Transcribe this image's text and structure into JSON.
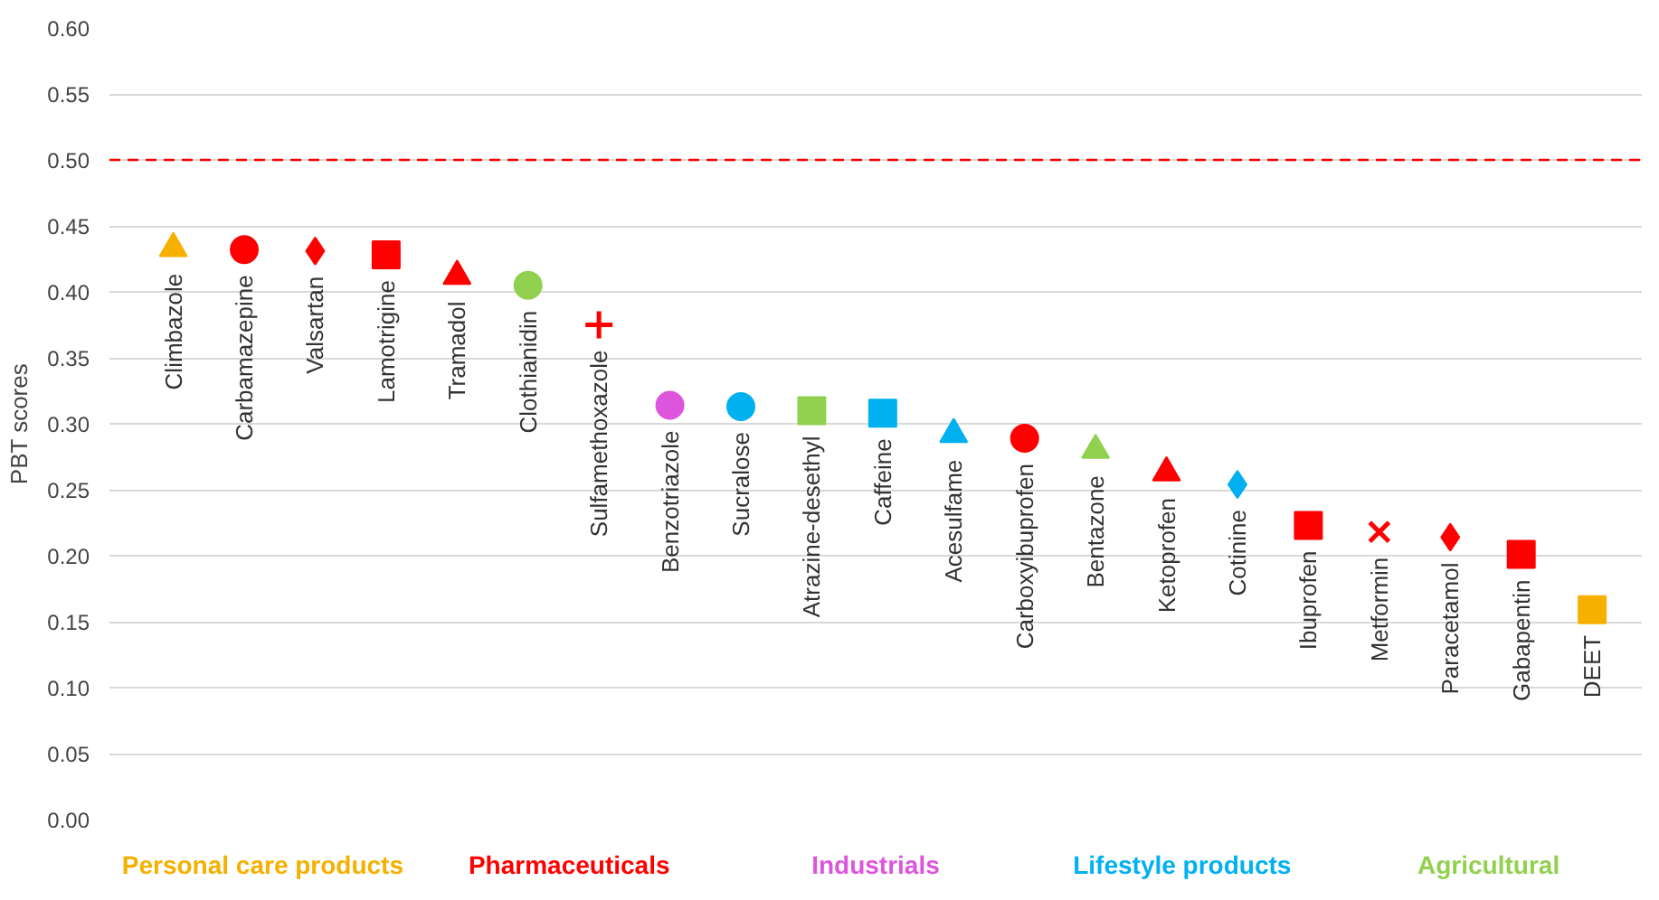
{
  "chart_data": {
    "type": "scatter",
    "ylabel": "PBT scores",
    "categories": [
      "Climbazole",
      "Carbamazepine",
      "Valsartan",
      "Lamotrigine",
      "Tramadol",
      "Clothianidin",
      "Sulfamethoxazole",
      "Benzotriazole",
      "Sucralose",
      "Atrazine-desethyl",
      "Caffeine",
      "Acesulfame",
      "Carboxyibuprofen",
      "Bentazone",
      "Ketoprofen",
      "Cotinine",
      "Ibuprofen",
      "Metformin",
      "Paracetamol",
      "Gabapentin",
      "DEET"
    ],
    "series": [
      {
        "name": "Personal care products",
        "color": "#f5b000",
        "marker": "triangle",
        "x": [
          "Climbazole"
        ],
        "values": [
          0.433
        ]
      },
      {
        "color": "#f5b000",
        "marker": "square",
        "x": [
          "DEET"
        ],
        "values": [
          0.159
        ]
      },
      {
        "name": "Pharmaceuticals",
        "color": "#ff0000",
        "marker": "circle",
        "x": [
          "Carbamazepine",
          "Carboxyibuprofen"
        ],
        "values": [
          0.432,
          0.289
        ]
      },
      {
        "color": "#ff0000",
        "marker": "diamond",
        "x": [
          "Valsartan",
          "Paracetamol"
        ],
        "values": [
          0.431,
          0.214
        ]
      },
      {
        "color": "#ff0000",
        "marker": "square",
        "x": [
          "Lamotrigine",
          "Ibuprofen"
        ],
        "values": [
          0.428,
          0.223
        ]
      },
      {
        "color": "#ff0000",
        "marker": "triangle",
        "x": [
          "Tramadol",
          "Ketoprofen"
        ],
        "values": [
          0.412,
          0.263
        ]
      },
      {
        "color": "#ff0000",
        "marker": "cross",
        "x": [
          "Sulfamethoxazole"
        ],
        "values": [
          0.375
        ]
      },
      {
        "color": "#ff0000",
        "marker": "x",
        "x": [
          "Metformin"
        ],
        "values": [
          0.218
        ]
      },
      {
        "color": "#ff0000",
        "marker": "square",
        "x": [
          "Gabapentin"
        ],
        "values": [
          0.201
        ]
      },
      {
        "name": "Industrials",
        "color": "#dd55dd",
        "marker": "circle",
        "x": [
          "Benzotriazole"
        ],
        "values": [
          0.314
        ]
      },
      {
        "name": "Lifestyle products",
        "color": "#00b0f0",
        "marker": "circle",
        "x": [
          "Sucralose"
        ],
        "values": [
          0.313
        ]
      },
      {
        "color": "#00b0f0",
        "marker": "square",
        "x": [
          "Caffeine"
        ],
        "values": [
          0.308
        ]
      },
      {
        "color": "#00b0f0",
        "marker": "triangle",
        "x": [
          "Acesulfame"
        ],
        "values": [
          0.292
        ]
      },
      {
        "color": "#00b0f0",
        "marker": "diamond",
        "x": [
          "Cotinine"
        ],
        "values": [
          0.254
        ]
      },
      {
        "name": "Agricultural",
        "color": "#92d050",
        "marker": "circle",
        "x": [
          "Clothianidin"
        ],
        "values": [
          0.405
        ]
      },
      {
        "color": "#92d050",
        "marker": "square",
        "x": [
          "Atrazine-desethyl"
        ],
        "values": [
          0.31
        ]
      },
      {
        "color": "#92d050",
        "marker": "triangle",
        "x": [
          "Bentazone"
        ],
        "values": [
          0.28
        ]
      }
    ],
    "ylim": [
      0,
      0.6
    ],
    "yticks": [
      {
        "value": 0,
        "label": "0.00"
      },
      {
        "value": 0.05,
        "label": "0.05"
      },
      {
        "value": 0.1,
        "label": "0.10"
      },
      {
        "value": 0.15,
        "label": "0.15"
      },
      {
        "value": 0.2,
        "label": "0.20"
      },
      {
        "value": 0.25,
        "label": "0.25"
      },
      {
        "value": 0.3,
        "label": "0.30"
      },
      {
        "value": 0.35,
        "label": "0.35"
      },
      {
        "value": 0.4,
        "label": "0.40"
      },
      {
        "value": 0.45,
        "label": "0.45"
      },
      {
        "value": 0.5,
        "label": "0.50"
      },
      {
        "value": 0.55,
        "label": "0.55"
      },
      {
        "value": 0.6,
        "label": "0.60"
      }
    ],
    "grid": "y",
    "tick_labels": "y",
    "ref_lines": [
      {
        "axis": "y",
        "value": 0.5,
        "color": "#ff0000",
        "line_style": "dashed"
      }
    ]
  }
}
